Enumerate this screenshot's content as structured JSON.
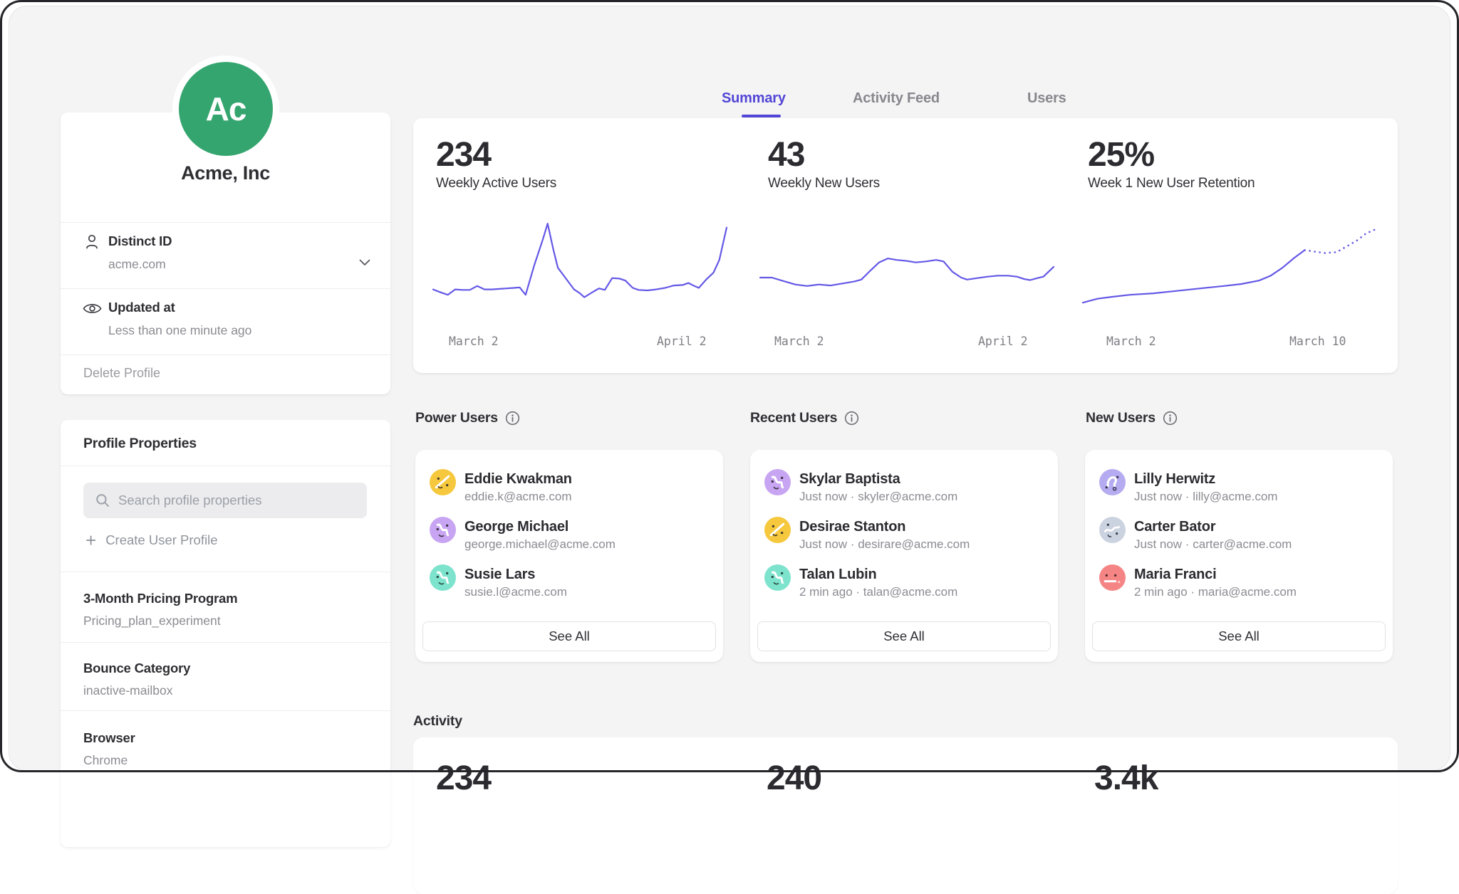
{
  "theme": {
    "accent": "#5246d6",
    "chart_line": "#6458e6",
    "surface_bg": "#f4f4f5",
    "card_bg": "#ffffff",
    "text_primary": "#2e2e33",
    "text_secondary": "#8b8b92",
    "frame_border": "#26262a"
  },
  "sidebar": {
    "company": {
      "avatar_initials": "Ac",
      "avatar_color": "#35a56f",
      "name": "Acme, Inc"
    },
    "fields": [
      {
        "icon": "person-icon",
        "label": "Distinct ID",
        "value": "acme.com",
        "expandable": true
      },
      {
        "icon": "eye-icon",
        "label": "Updated at",
        "value": "Less than one minute ago",
        "expandable": false
      }
    ],
    "delete_label": "Delete Profile",
    "properties": {
      "title": "Profile Properties",
      "search_placeholder": "Search profile properties",
      "create_label": "Create User Profile",
      "items": [
        {
          "label": "3-Month Pricing Program",
          "value": "Pricing_plan_experiment"
        },
        {
          "label": "Bounce Category",
          "value": "inactive-mailbox"
        },
        {
          "label": "Browser",
          "value": "Chrome"
        }
      ]
    }
  },
  "tabs": [
    {
      "label": "Summary",
      "active": true
    },
    {
      "label": "Activity Feed",
      "active": false
    },
    {
      "label": "Users",
      "active": false
    }
  ],
  "stats": [
    {
      "value": "234",
      "label": "Weekly Active Users"
    },
    {
      "value": "43",
      "label": "Weekly New Users"
    },
    {
      "value": "25%",
      "label": "Week 1 New User Retention"
    }
  ],
  "chart_data": [
    {
      "type": "line",
      "title": "Weekly Active Users",
      "headline_value": "234",
      "x_labels": [
        "March 2",
        "April 2"
      ],
      "color": "#6458e6",
      "axis_note": "unlabeled sparkline, points normalized 0-1 (y bottom-up)",
      "series": [
        {
          "name": "weekly-active-users",
          "style": "solid",
          "points": [
            [
              0,
              0.3
            ],
            [
              0.025,
              0.27
            ],
            [
              0.05,
              0.245
            ],
            [
              0.075,
              0.3
            ],
            [
              0.1,
              0.295
            ],
            [
              0.125,
              0.295
            ],
            [
              0.15,
              0.335
            ],
            [
              0.175,
              0.3
            ],
            [
              0.2,
              0.3
            ],
            [
              0.225,
              0.305
            ],
            [
              0.25,
              0.31
            ],
            [
              0.275,
              0.315
            ],
            [
              0.295,
              0.32
            ],
            [
              0.315,
              0.245
            ],
            [
              0.345,
              0.55
            ],
            [
              0.375,
              0.82
            ],
            [
              0.39,
              0.97
            ],
            [
              0.41,
              0.7
            ],
            [
              0.425,
              0.52
            ],
            [
              0.45,
              0.42
            ],
            [
              0.48,
              0.3
            ],
            [
              0.5,
              0.26
            ],
            [
              0.515,
              0.22
            ],
            [
              0.545,
              0.275
            ],
            [
              0.565,
              0.31
            ],
            [
              0.585,
              0.295
            ],
            [
              0.61,
              0.415
            ],
            [
              0.635,
              0.41
            ],
            [
              0.655,
              0.39
            ],
            [
              0.68,
              0.315
            ],
            [
              0.7,
              0.295
            ],
            [
              0.73,
              0.29
            ],
            [
              0.76,
              0.3
            ],
            [
              0.79,
              0.315
            ],
            [
              0.82,
              0.34
            ],
            [
              0.85,
              0.345
            ],
            [
              0.87,
              0.365
            ],
            [
              0.89,
              0.335
            ],
            [
              0.905,
              0.315
            ],
            [
              0.93,
              0.4
            ],
            [
              0.955,
              0.47
            ],
            [
              0.975,
              0.6
            ],
            [
              1,
              0.93
            ]
          ]
        }
      ]
    },
    {
      "type": "line",
      "title": "Weekly New Users",
      "headline_value": "43",
      "x_labels": [
        "March 2",
        "April 2"
      ],
      "color": "#6458e6",
      "axis_note": "unlabeled sparkline, points normalized 0-1 (y bottom-up)",
      "series": [
        {
          "name": "weekly-new-users",
          "style": "solid",
          "points": [
            [
              0,
              0.42
            ],
            [
              0.04,
              0.42
            ],
            [
              0.08,
              0.385
            ],
            [
              0.12,
              0.35
            ],
            [
              0.16,
              0.335
            ],
            [
              0.2,
              0.35
            ],
            [
              0.24,
              0.34
            ],
            [
              0.28,
              0.36
            ],
            [
              0.32,
              0.38
            ],
            [
              0.345,
              0.4
            ],
            [
              0.375,
              0.49
            ],
            [
              0.405,
              0.575
            ],
            [
              0.435,
              0.615
            ],
            [
              0.465,
              0.6
            ],
            [
              0.5,
              0.59
            ],
            [
              0.53,
              0.575
            ],
            [
              0.565,
              0.585
            ],
            [
              0.6,
              0.6
            ],
            [
              0.625,
              0.585
            ],
            [
              0.655,
              0.48
            ],
            [
              0.685,
              0.42
            ],
            [
              0.705,
              0.4
            ],
            [
              0.74,
              0.415
            ],
            [
              0.775,
              0.43
            ],
            [
              0.81,
              0.44
            ],
            [
              0.845,
              0.44
            ],
            [
              0.875,
              0.43
            ],
            [
              0.9,
              0.405
            ],
            [
              0.92,
              0.395
            ],
            [
              0.945,
              0.415
            ],
            [
              0.965,
              0.43
            ],
            [
              1,
              0.53
            ]
          ]
        }
      ]
    },
    {
      "type": "line",
      "title": "Week 1 New User Retention",
      "headline_value": "25%",
      "x_labels": [
        "March 2",
        "March 10"
      ],
      "color": "#6458e6",
      "axis_note": "solid observed segment plus dotted projection, points normalized 0-1 (y bottom-up)",
      "series": [
        {
          "name": "retention-observed",
          "style": "solid",
          "points": [
            [
              0,
              0.165
            ],
            [
              0.05,
              0.205
            ],
            [
              0.1,
              0.225
            ],
            [
              0.16,
              0.245
            ],
            [
              0.24,
              0.26
            ],
            [
              0.32,
              0.285
            ],
            [
              0.4,
              0.31
            ],
            [
              0.48,
              0.335
            ],
            [
              0.54,
              0.355
            ],
            [
              0.6,
              0.39
            ],
            [
              0.64,
              0.44
            ],
            [
              0.68,
              0.52
            ],
            [
              0.72,
              0.62
            ],
            [
              0.756,
              0.7
            ]
          ]
        },
        {
          "name": "retention-projection",
          "style": "dotted",
          "points": [
            [
              0.756,
              0.7
            ],
            [
              0.79,
              0.685
            ],
            [
              0.825,
              0.67
            ],
            [
              0.865,
              0.68
            ],
            [
              0.9,
              0.74
            ],
            [
              0.935,
              0.8
            ],
            [
              0.965,
              0.87
            ],
            [
              1,
              0.915
            ]
          ]
        }
      ]
    }
  ],
  "user_lists": [
    {
      "title": "Power Users",
      "see_all_label": "See All",
      "users": [
        {
          "name": "Eddie Kwakman",
          "subtitle": "eddie.k@acme.com",
          "avatar_color": "#f6c83d"
        },
        {
          "name": "George Michael",
          "subtitle": "george.michael@acme.com",
          "avatar_color": "#c8a5f2"
        },
        {
          "name": "Susie Lars",
          "subtitle": "susie.l@acme.com",
          "avatar_color": "#7de3cd"
        }
      ]
    },
    {
      "title": "Recent Users",
      "see_all_label": "See All",
      "users": [
        {
          "name": "Skylar Baptista",
          "subtitle": "Just now · skyler@acme.com",
          "avatar_color": "#c8a5f2"
        },
        {
          "name": "Desirae Stanton",
          "subtitle": "Just now · desirare@acme.com",
          "avatar_color": "#f6c83d"
        },
        {
          "name": "Talan Lubin",
          "subtitle": "2 min ago · talan@acme.com",
          "avatar_color": "#7de3cd"
        }
      ]
    },
    {
      "title": "New Users",
      "see_all_label": "See All",
      "users": [
        {
          "name": "Lilly Herwitz",
          "subtitle": "Just now · lilly@acme.com",
          "avatar_color": "#b5abf0"
        },
        {
          "name": "Carter Bator",
          "subtitle": "Just now · carter@acme.com",
          "avatar_color": "#ccd3e0"
        },
        {
          "name": "Maria Franci",
          "subtitle": "2 min ago · maria@acme.com",
          "avatar_color": "#f58585"
        }
      ]
    }
  ],
  "activity": {
    "title": "Activity",
    "values": [
      "234",
      "240",
      "3.4k"
    ]
  }
}
